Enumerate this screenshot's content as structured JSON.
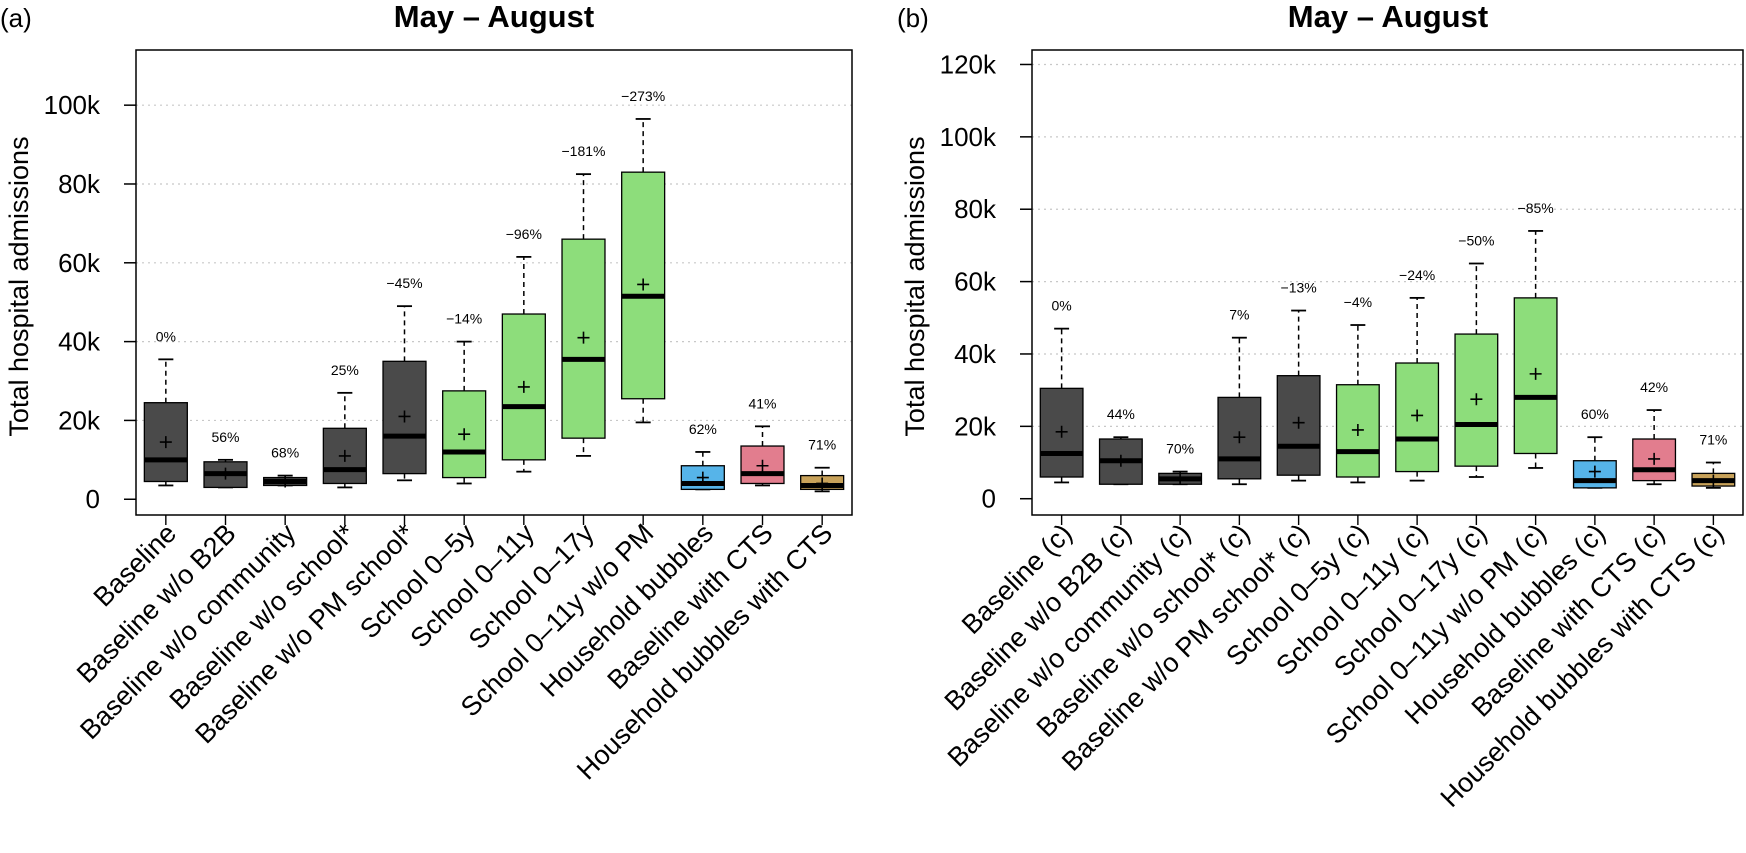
{
  "chart_data": [
    {
      "type": "box",
      "panel_label": "(a)",
      "title": "May – August",
      "ylabel": "Total hospital admissions",
      "xlabel": "",
      "ylim": [
        -4000,
        114000
      ],
      "yticks": [
        0,
        20000,
        40000,
        60000,
        80000,
        100000
      ],
      "ytick_labels": [
        "0",
        "20k",
        "40k",
        "60k",
        "80k",
        "100k"
      ],
      "grid": "horizontal dotted",
      "categories": [
        "Baseline",
        "Baseline w/o B2B",
        "Baseline w/o community",
        "Baseline w/o school*",
        "Baseline w/o PM school*",
        "School 0–5y",
        "School 0–11y",
        "School 0–17y",
        "School 0–11y w/o PM",
        "Household bubbles",
        "Baseline with CTS",
        "Household bubbles with CTS"
      ],
      "colors": [
        "#4a4a4a",
        "#4a4a4a",
        "#4a4a4a",
        "#4a4a4a",
        "#4a4a4a",
        "#8ddd7b",
        "#8ddd7b",
        "#8ddd7b",
        "#8ddd7b",
        "#56b4e9",
        "#e27d8e",
        "#c8a25a"
      ],
      "boxes": [
        {
          "whisker_low": 3500,
          "q1": 4500,
          "median": 10000,
          "q3": 24500,
          "whisker_high": 35500,
          "mean": 14500,
          "change": "0%"
        },
        {
          "whisker_low": 3000,
          "q1": 3000,
          "median": 6500,
          "q3": 9500,
          "whisker_high": 10000,
          "mean": 6500,
          "change": "56%"
        },
        {
          "whisker_low": 3500,
          "q1": 3500,
          "median": 4500,
          "q3": 5500,
          "whisker_high": 6000,
          "mean": 4500,
          "change": "68%"
        },
        {
          "whisker_low": 3000,
          "q1": 4000,
          "median": 7500,
          "q3": 18000,
          "whisker_high": 27000,
          "mean": 11000,
          "change": "25%"
        },
        {
          "whisker_low": 4800,
          "q1": 6500,
          "median": 16000,
          "q3": 35000,
          "whisker_high": 49000,
          "mean": 21000,
          "change": "−45%"
        },
        {
          "whisker_low": 4000,
          "q1": 5500,
          "median": 12000,
          "q3": 27500,
          "whisker_high": 40000,
          "mean": 16500,
          "change": "−14%"
        },
        {
          "whisker_low": 7000,
          "q1": 10000,
          "median": 23500,
          "q3": 47000,
          "whisker_high": 61500,
          "mean": 28500,
          "change": "−96%"
        },
        {
          "whisker_low": 11000,
          "q1": 15500,
          "median": 35500,
          "q3": 66000,
          "whisker_high": 82500,
          "mean": 41000,
          "change": "−181%"
        },
        {
          "whisker_low": 19500,
          "q1": 25500,
          "median": 51500,
          "q3": 83000,
          "whisker_high": 96500,
          "mean": 54500,
          "change": "−273%"
        },
        {
          "whisker_low": 2500,
          "q1": 2500,
          "median": 4000,
          "q3": 8500,
          "whisker_high": 12000,
          "mean": 5500,
          "change": "62%"
        },
        {
          "whisker_low": 3500,
          "q1": 4000,
          "median": 6500,
          "q3": 13500,
          "whisker_high": 18500,
          "mean": 8500,
          "change": "41%"
        },
        {
          "whisker_low": 2000,
          "q1": 2500,
          "median": 3500,
          "q3": 6000,
          "whisker_high": 8000,
          "mean": 4000,
          "change": "71%"
        }
      ]
    },
    {
      "type": "box",
      "panel_label": "(b)",
      "title": "May – August",
      "ylabel": "Total hospital admissions",
      "xlabel": "",
      "ylim": [
        -4500,
        124000
      ],
      "yticks": [
        0,
        20000,
        40000,
        60000,
        80000,
        100000,
        120000
      ],
      "ytick_labels": [
        "0",
        "20k",
        "40k",
        "60k",
        "80k",
        "100k",
        "120k"
      ],
      "grid": "horizontal dotted",
      "categories": [
        "Baseline (c)",
        "Baseline w/o B2B (c)",
        "Baseline w/o community (c)",
        "Baseline w/o school* (c)",
        "Baseline w/o PM school* (c)",
        "School 0–5y (c)",
        "School 0–11y (c)",
        "School 0–17y (c)",
        "School 0–11y w/o PM (c)",
        "Household bubbles (c)",
        "Baseline with CTS (c)",
        "Household bubbles with CTS (c)"
      ],
      "colors": [
        "#4a4a4a",
        "#4a4a4a",
        "#4a4a4a",
        "#4a4a4a",
        "#4a4a4a",
        "#8ddd7b",
        "#8ddd7b",
        "#8ddd7b",
        "#8ddd7b",
        "#56b4e9",
        "#e27d8e",
        "#c8a25a"
      ],
      "boxes": [
        {
          "whisker_low": 4500,
          "q1": 6000,
          "median": 12500,
          "q3": 30500,
          "whisker_high": 47000,
          "mean": 18500,
          "change": "0%"
        },
        {
          "whisker_low": 4000,
          "q1": 4000,
          "median": 10500,
          "q3": 16500,
          "whisker_high": 17000,
          "mean": 10500,
          "change": "44%"
        },
        {
          "whisker_low": 4000,
          "q1": 4000,
          "median": 5500,
          "q3": 7000,
          "whisker_high": 7500,
          "mean": 5500,
          "change": "70%"
        },
        {
          "whisker_low": 4000,
          "q1": 5500,
          "median": 11000,
          "q3": 28000,
          "whisker_high": 44500,
          "mean": 17000,
          "change": "7%"
        },
        {
          "whisker_low": 5000,
          "q1": 6500,
          "median": 14500,
          "q3": 34000,
          "whisker_high": 52000,
          "mean": 21000,
          "change": "−13%"
        },
        {
          "whisker_low": 4500,
          "q1": 6000,
          "median": 13000,
          "q3": 31500,
          "whisker_high": 48000,
          "mean": 19000,
          "change": "−4%"
        },
        {
          "whisker_low": 5000,
          "q1": 7500,
          "median": 16500,
          "q3": 37500,
          "whisker_high": 55500,
          "mean": 23000,
          "change": "−24%"
        },
        {
          "whisker_low": 6000,
          "q1": 9000,
          "median": 20500,
          "q3": 45500,
          "whisker_high": 65000,
          "mean": 27500,
          "change": "−50%"
        },
        {
          "whisker_low": 8500,
          "q1": 12500,
          "median": 28000,
          "q3": 55500,
          "whisker_high": 74000,
          "mean": 34500,
          "change": "−85%"
        },
        {
          "whisker_low": 3000,
          "q1": 3000,
          "median": 5000,
          "q3": 10500,
          "whisker_high": 17000,
          "mean": 7500,
          "change": "60%"
        },
        {
          "whisker_low": 4000,
          "q1": 5000,
          "median": 8000,
          "q3": 16500,
          "whisker_high": 24500,
          "mean": 11000,
          "change": "42%"
        },
        {
          "whisker_low": 3000,
          "q1": 3500,
          "median": 5000,
          "q3": 7000,
          "whisker_high": 10000,
          "mean": 5000,
          "change": "71%"
        }
      ]
    }
  ]
}
